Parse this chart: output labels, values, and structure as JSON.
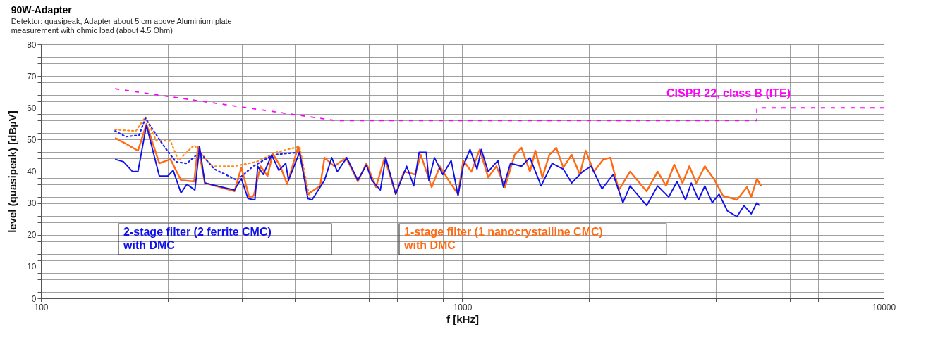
{
  "chart_data": {
    "type": "line",
    "title": "90W-Adapter",
    "subtitle": "Detektor: quasipeak, Adapter about 5 cm above Aluminium plate measurement with ohmic load (about 4.5 Ohm)",
    "xlabel": "f  [kHz]",
    "ylabel": "level (quasipeak)  [dBµV]",
    "log": "x",
    "grid": true,
    "xlim": [
      100,
      10000
    ],
    "xticks": [
      100,
      {
        "value": 200,
        "label": null
      },
      {
        "value": 300,
        "label": null
      },
      {
        "value": 400,
        "label": null
      },
      {
        "value": 500,
        "label": null
      },
      {
        "value": 600,
        "label": null
      },
      {
        "value": 700,
        "label": null
      },
      {
        "value": 800,
        "label": null
      },
      {
        "value": 900,
        "label": null
      },
      1000,
      {
        "value": 2000,
        "label": null
      },
      {
        "value": 3000,
        "label": null
      },
      {
        "value": 4000,
        "label": null
      },
      {
        "value": 5000,
        "label": null
      },
      {
        "value": 6000,
        "label": null
      },
      {
        "value": 7000,
        "label": null
      },
      {
        "value": 8000,
        "label": null
      },
      {
        "value": 9000,
        "label": null
      },
      10000
    ],
    "ylim": [
      0,
      80
    ],
    "yticks": [
      0,
      {
        "value": 2,
        "label": null
      },
      {
        "value": 4,
        "label": null
      },
      {
        "value": 6,
        "label": null
      },
      {
        "value": 8,
        "label": null
      },
      10,
      {
        "value": 12,
        "label": null
      },
      {
        "value": 14,
        "label": null
      },
      {
        "value": 16,
        "label": null
      },
      {
        "value": 18,
        "label": null
      },
      20,
      {
        "value": 22,
        "label": null
      },
      {
        "value": 24,
        "label": null
      },
      {
        "value": 26,
        "label": null
      },
      {
        "value": 28,
        "label": null
      },
      30,
      {
        "value": 32,
        "label": null
      },
      {
        "value": 34,
        "label": null
      },
      {
        "value": 36,
        "label": null
      },
      {
        "value": 38,
        "label": null
      },
      40,
      {
        "value": 42,
        "label": null
      },
      {
        "value": 44,
        "label": null
      },
      {
        "value": 46,
        "label": null
      },
      {
        "value": 48,
        "label": null
      },
      50,
      {
        "value": 52,
        "label": null
      },
      {
        "value": 54,
        "label": null
      },
      {
        "value": 56,
        "label": null
      },
      {
        "value": 58,
        "label": null
      },
      60,
      {
        "value": 62,
        "label": null
      },
      {
        "value": 64,
        "label": null
      },
      {
        "value": 66,
        "label": null
      },
      {
        "value": 68,
        "label": null
      },
      70,
      {
        "value": 72,
        "label": null
      },
      {
        "value": 74,
        "label": null
      },
      {
        "value": 76,
        "label": null
      },
      {
        "value": 78,
        "label": null
      },
      80
    ],
    "series": [
      {
        "color": "#ff8c1a",
        "line_style": "dotted",
        "x": [
          150,
          168,
          177,
          188,
          203,
          212,
          231,
          255,
          288,
          325,
          362,
          411,
          433
        ],
        "values": [
          53.1,
          52.7,
          57.1,
          49.6,
          49.6,
          43.4,
          48.3,
          41.6,
          41.6,
          43,
          46,
          47.8,
          32.3
        ]
      },
      {
        "color": "#2020ff",
        "line_style": "dotted",
        "x": [
          150,
          159,
          171,
          177,
          194,
          209,
          222,
          238,
          258,
          292,
          319,
          356,
          411,
          430
        ],
        "values": [
          52.7,
          50.9,
          51.4,
          56.7,
          48.7,
          43,
          42.5,
          46,
          40.7,
          37.2,
          41.6,
          45.2,
          46,
          32.8
        ]
      },
      {
        "name": "1-stage filter (1 nanocrystalline CMC) with DMC",
        "color": "#ff6a13",
        "line_style": "solid",
        "x": [
          150,
          159,
          170,
          178,
          191,
          203,
          215,
          231,
          236,
          245,
          288,
          299,
          312,
          320,
          332,
          345,
          355,
          370,
          384,
          408,
          430,
          460,
          471,
          497,
          530,
          565,
          592,
          624,
          654,
          695,
          727,
          773,
          797,
          846,
          885,
          927,
          977,
          1005,
          1051,
          1100,
          1152,
          1205,
          1262,
          1331,
          1382,
          1447,
          1491,
          1549,
          1609,
          1671,
          1736,
          1818,
          1901,
          1962,
          2052,
          2163,
          2246,
          2352,
          2501,
          2738,
          2908,
          3044,
          3184,
          3331,
          3458,
          3591,
          3764,
          3971,
          4155,
          4486,
          4736,
          4848,
          5000,
          5120
        ],
        "values": [
          50.5,
          48.7,
          46.5,
          54.9,
          42.5,
          43.8,
          37.2,
          36.8,
          47.8,
          36.3,
          33.7,
          41.2,
          31.9,
          32.3,
          41.6,
          38.5,
          45.6,
          41.6,
          35.9,
          47.8,
          32.8,
          35.4,
          44.3,
          41.6,
          44.3,
          36.8,
          42.5,
          35,
          44.3,
          32.8,
          39.9,
          39,
          45.2,
          35,
          41.6,
          37.2,
          32.8,
          43.4,
          39.9,
          46.9,
          38.1,
          41.6,
          35,
          45.2,
          47.4,
          39.9,
          46.5,
          38.1,
          45.2,
          47.4,
          41.2,
          45.2,
          39,
          46.5,
          39.9,
          43.8,
          44.3,
          34.1,
          39.9,
          33.7,
          39.9,
          35.4,
          42.1,
          36.3,
          41.6,
          36.3,
          41.6,
          37.2,
          32.3,
          31,
          35,
          31.9,
          37.6,
          35.4
        ]
      },
      {
        "name": "2-stage filter (2 ferrite CMC) with DMC",
        "color": "#1010ee",
        "line_style": "solid",
        "x": [
          150,
          157,
          165,
          170,
          178,
          191,
          200,
          206,
          215,
          222,
          232,
          238,
          245,
          288,
          299,
          310,
          322,
          327,
          337,
          353,
          367,
          381,
          387,
          411,
          430,
          440,
          471,
          490,
          505,
          532,
          565,
          592,
          610,
          639,
          658,
          695,
          738,
          767,
          790,
          821,
          833,
          859,
          899,
          941,
          977,
          1005,
          1043,
          1084,
          1109,
          1152,
          1215,
          1252,
          1301,
          1382,
          1447,
          1538,
          1634,
          1736,
          1818,
          1930,
          2022,
          2146,
          2281,
          2405,
          2501,
          2738,
          2908,
          3090,
          3232,
          3385,
          3494,
          3636,
          3764,
          3919,
          4067,
          4258,
          4486,
          4661,
          4848,
          5000,
          5070
        ],
        "values": [
          43.8,
          43,
          39.9,
          40,
          54.5,
          38.5,
          38.5,
          40.3,
          33.2,
          35.9,
          34.1,
          47.8,
          36.3,
          34.1,
          37.7,
          31.4,
          31,
          41.6,
          39,
          45.2,
          40.3,
          42.5,
          37.2,
          46,
          31.4,
          31,
          37.2,
          44.3,
          39.9,
          44.3,
          37.2,
          42,
          37.2,
          34.1,
          44.3,
          32.8,
          41.6,
          35.4,
          46,
          46,
          37.2,
          44.3,
          39,
          43.4,
          32.3,
          41.6,
          46.9,
          40.7,
          46.9,
          39.9,
          43.4,
          35,
          42.5,
          41.6,
          44.3,
          35.4,
          42.5,
          40.7,
          36.3,
          39.9,
          41.6,
          34.5,
          39,
          30.1,
          35.4,
          29.2,
          35.4,
          31.9,
          36.8,
          31,
          36.3,
          31,
          35.4,
          30.1,
          32.8,
          27.5,
          25.7,
          29.2,
          26.6,
          30.1,
          29.2
        ]
      },
      {
        "name": "CISPR 22, class B (ITE)",
        "color": "#ff00ff",
        "line_style": "dashed",
        "x": [
          150,
          500,
          5000,
          5000,
          10000
        ],
        "values": [
          66,
          56,
          56,
          60,
          60
        ]
      }
    ]
  }
}
